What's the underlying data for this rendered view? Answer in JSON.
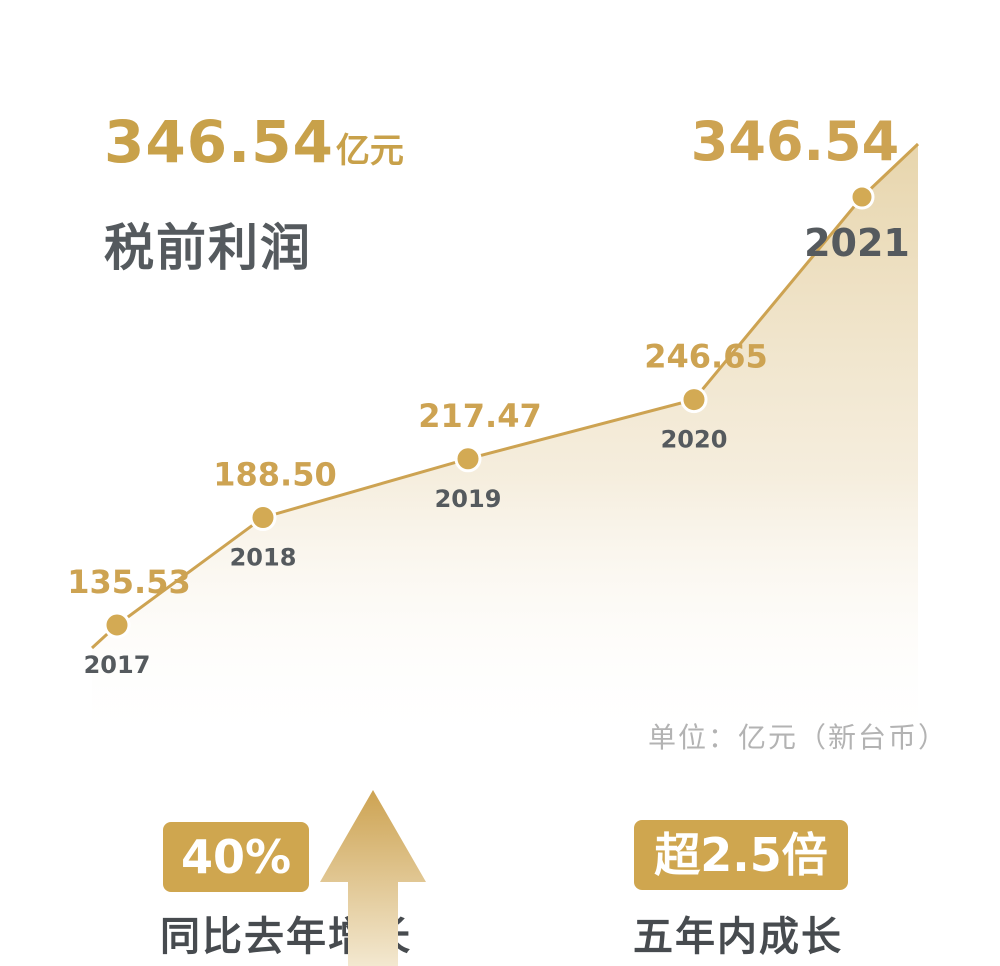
{
  "headline": {
    "value": "346.54",
    "unit": "亿元"
  },
  "subtitle": "税前利润",
  "unit_note": "单位：亿元（新台币）",
  "stats": [
    {
      "badge": "40%",
      "caption": "同比去年增长"
    },
    {
      "badge": "超2.5倍",
      "caption": "五年内成长"
    }
  ],
  "colors": {
    "accent": "#c8a14a",
    "dark_text": "#555a5e",
    "muted": "#b3b3b3"
  },
  "chart_data": {
    "type": "area",
    "x": [
      "2017",
      "2018",
      "2019",
      "2020",
      "2021"
    ],
    "values": [
      135.53,
      188.5,
      217.47,
      246.65,
      346.54
    ],
    "value_labels": [
      "135.53",
      "188.50",
      "217.47",
      "246.65",
      "346.54"
    ],
    "title": "税前利润",
    "unit": "单位：亿元（新台币）",
    "xlabel": "",
    "ylabel": "",
    "grid": false,
    "legend": "none"
  }
}
